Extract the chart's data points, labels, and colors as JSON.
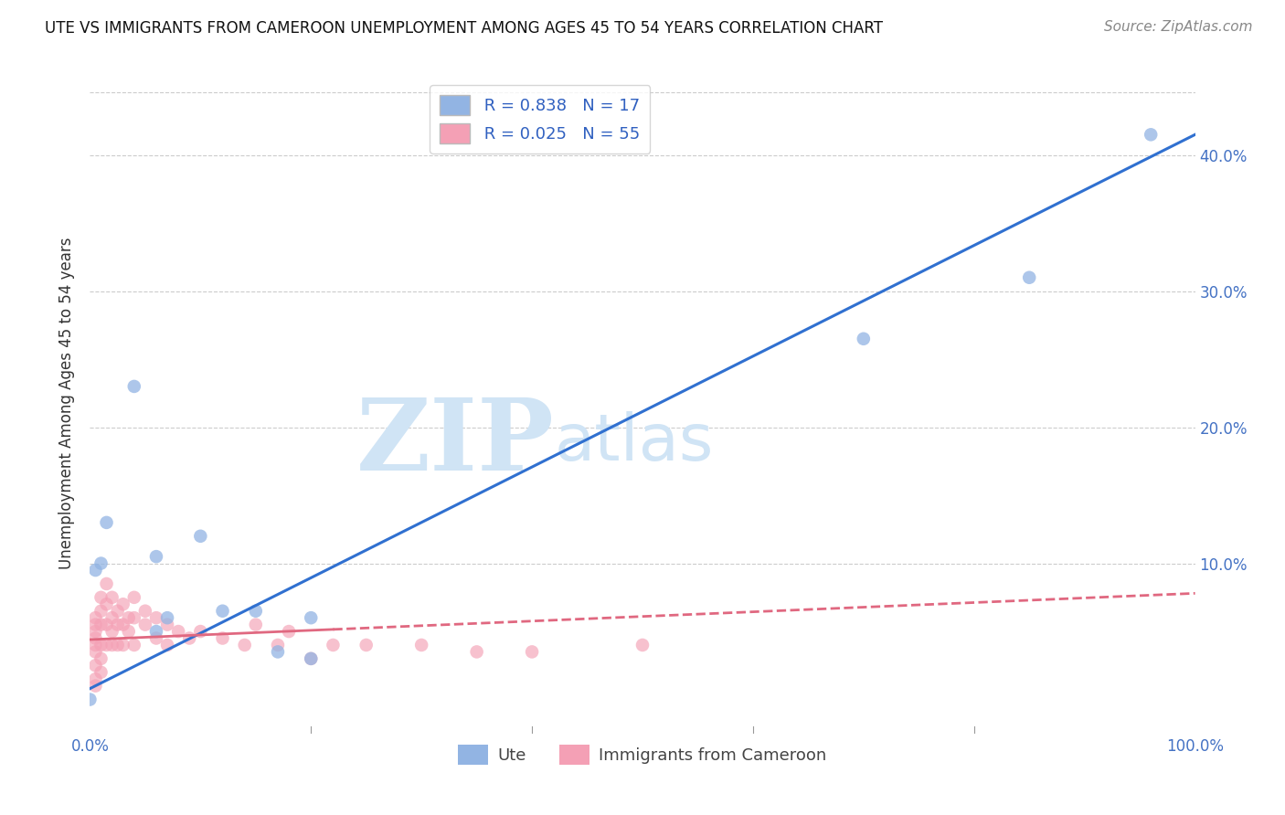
{
  "title": "UTE VS IMMIGRANTS FROM CAMEROON UNEMPLOYMENT AMONG AGES 45 TO 54 YEARS CORRELATION CHART",
  "source": "Source: ZipAtlas.com",
  "ylabel_label": "Unemployment Among Ages 45 to 54 years",
  "ute_R": 0.838,
  "ute_N": 17,
  "cam_R": 0.025,
  "cam_N": 55,
  "xlim": [
    0.0,
    1.0
  ],
  "ylim": [
    -0.025,
    0.46
  ],
  "xticks": [
    0.0,
    0.2,
    0.4,
    0.6,
    0.8,
    1.0
  ],
  "xticklabels": [
    "0.0%",
    "",
    "",
    "",
    "",
    "100.0%"
  ],
  "yticks": [
    0.0,
    0.1,
    0.2,
    0.3,
    0.4
  ],
  "yticklabels_right": [
    "",
    "10.0%",
    "20.0%",
    "30.0%",
    "40.0%"
  ],
  "ute_color": "#92b4e3",
  "cam_color": "#f4a0b5",
  "ute_line_color": "#3070d0",
  "cam_line_color": "#e06880",
  "ute_line_x0": 0.0,
  "ute_line_y0": 0.008,
  "ute_line_x1": 1.0,
  "ute_line_y1": 0.415,
  "cam_line_x0": 0.0,
  "cam_line_y0": 0.044,
  "cam_line_x1": 1.0,
  "cam_line_y1": 0.078,
  "watermark_zip": "ZIP",
  "watermark_atlas": "atlas",
  "watermark_color": "#d0e4f5",
  "ute_scatter_x": [
    0.005,
    0.01,
    0.015,
    0.04,
    0.06,
    0.06,
    0.07,
    0.1,
    0.12,
    0.15,
    0.17,
    0.2,
    0.2,
    0.85,
    0.7,
    0.96,
    0.0
  ],
  "ute_scatter_y": [
    0.095,
    0.1,
    0.13,
    0.23,
    0.05,
    0.105,
    0.06,
    0.12,
    0.065,
    0.065,
    0.035,
    0.06,
    0.03,
    0.31,
    0.265,
    0.415,
    0.0
  ],
  "cam_scatter_x": [
    0.005,
    0.005,
    0.005,
    0.005,
    0.005,
    0.005,
    0.005,
    0.005,
    0.005,
    0.01,
    0.01,
    0.01,
    0.01,
    0.01,
    0.01,
    0.015,
    0.015,
    0.015,
    0.015,
    0.02,
    0.02,
    0.02,
    0.02,
    0.025,
    0.025,
    0.025,
    0.03,
    0.03,
    0.03,
    0.035,
    0.035,
    0.04,
    0.04,
    0.04,
    0.05,
    0.05,
    0.06,
    0.06,
    0.07,
    0.07,
    0.08,
    0.09,
    0.1,
    0.12,
    0.14,
    0.15,
    0.17,
    0.18,
    0.2,
    0.22,
    0.25,
    0.3,
    0.35,
    0.4,
    0.5
  ],
  "cam_scatter_y": [
    0.06,
    0.055,
    0.05,
    0.045,
    0.04,
    0.035,
    0.025,
    0.015,
    0.01,
    0.075,
    0.065,
    0.055,
    0.04,
    0.03,
    0.02,
    0.085,
    0.07,
    0.055,
    0.04,
    0.075,
    0.06,
    0.05,
    0.04,
    0.065,
    0.055,
    0.04,
    0.07,
    0.055,
    0.04,
    0.06,
    0.05,
    0.075,
    0.06,
    0.04,
    0.065,
    0.055,
    0.06,
    0.045,
    0.055,
    0.04,
    0.05,
    0.045,
    0.05,
    0.045,
    0.04,
    0.055,
    0.04,
    0.05,
    0.03,
    0.04,
    0.04,
    0.04,
    0.035,
    0.035,
    0.04
  ],
  "legend_label_ute": "Ute",
  "legend_label_cam": "Immigrants from Cameroon",
  "background_color": "#ffffff",
  "grid_color": "#cccccc",
  "tick_color": "#4472c4",
  "title_fontsize": 12,
  "source_fontsize": 11,
  "axis_fontsize": 12,
  "ylabel_fontsize": 12
}
